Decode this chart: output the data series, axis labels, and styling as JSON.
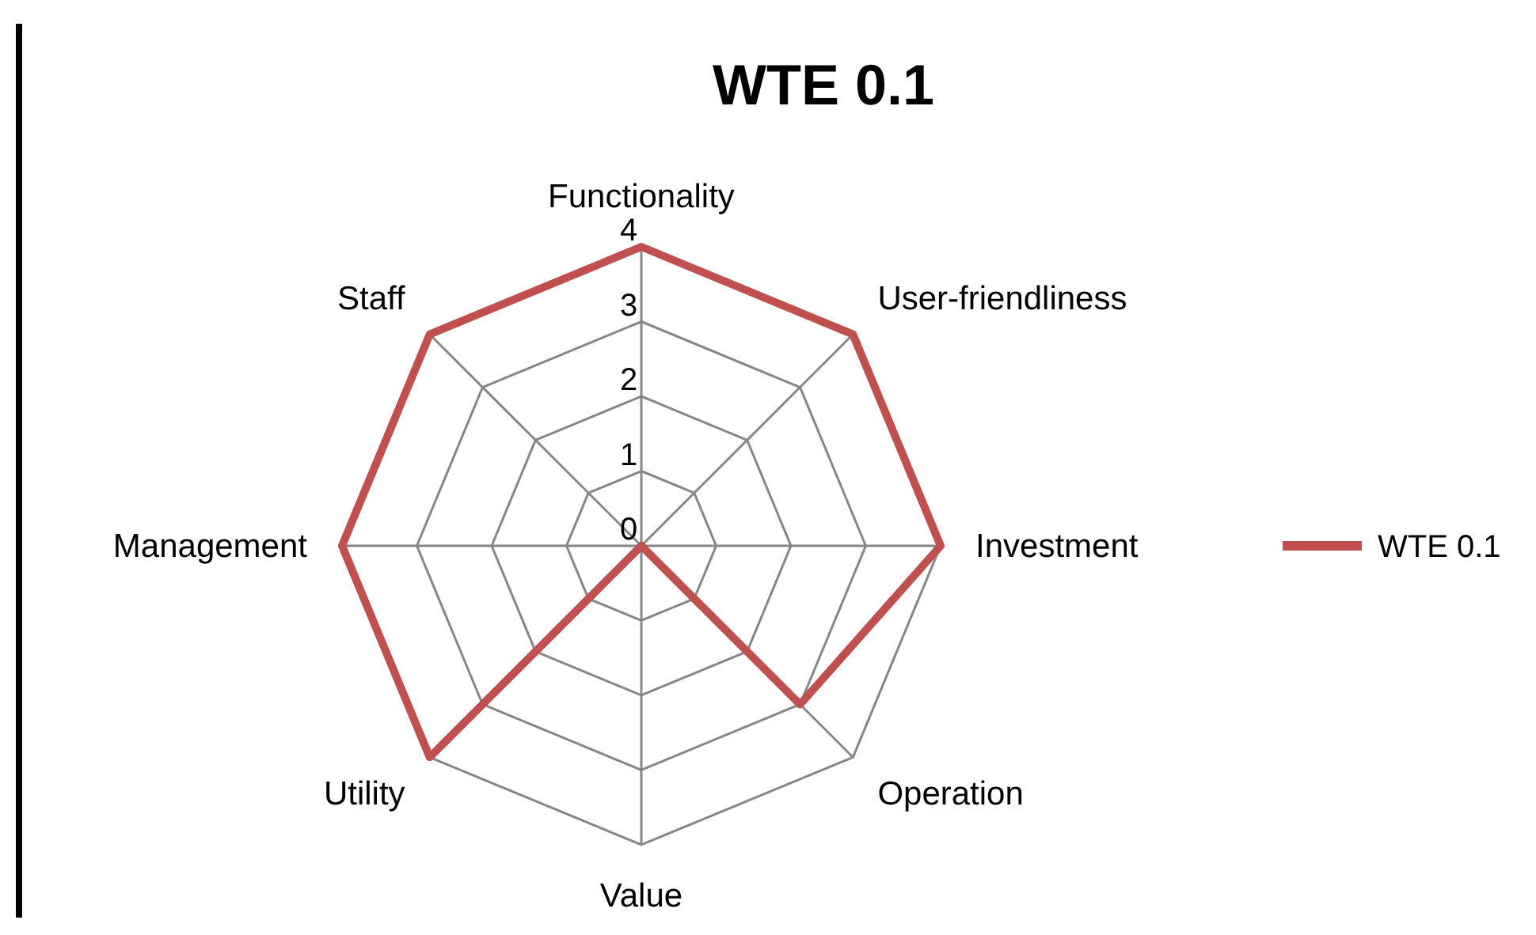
{
  "chart_data": {
    "type": "radar",
    "title": "WTE 0.1",
    "categories": [
      "Functionality",
      "User-friendliness",
      "Investment",
      "Operation",
      "Value",
      "Utility",
      "Management",
      "Staff"
    ],
    "series": [
      {
        "name": "WTE 0.1",
        "color": "#c0504d",
        "values": [
          4,
          4,
          4,
          3,
          0,
          4,
          4,
          4
        ]
      }
    ],
    "ylim": [
      0,
      4
    ],
    "yticks": [
      0,
      1,
      2,
      3,
      4
    ],
    "grid": true,
    "legend": "right"
  }
}
